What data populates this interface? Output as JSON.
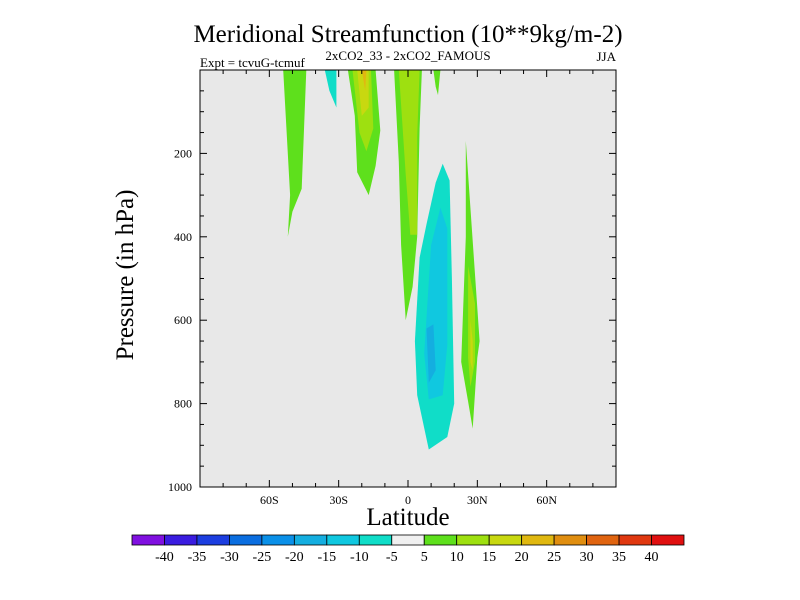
{
  "chart_data": {
    "type": "contour",
    "title": "Meridional Streamfunction (10**9kg/m-2)",
    "subtitle": "2xCO2_33 - 2xCO2_FAMOUS",
    "left_label": "Expt = tcvuG-tcmuf",
    "right_label": "JJA",
    "xlabel": "Latitude",
    "ylabel": "Pressure (in hPa)",
    "x_range": [
      -90,
      90
    ],
    "y_range": [
      0,
      1000
    ],
    "y_reversed": true,
    "x_ticks": [
      {
        "value": -60,
        "label": "60S"
      },
      {
        "value": -30,
        "label": "30S"
      },
      {
        "value": 0,
        "label": "0"
      },
      {
        "value": 30,
        "label": "30N"
      },
      {
        "value": 60,
        "label": "60N"
      }
    ],
    "y_ticks": [
      {
        "value": 200,
        "label": "200"
      },
      {
        "value": 400,
        "label": "400"
      },
      {
        "value": 600,
        "label": "600"
      },
      {
        "value": 800,
        "label": "800"
      },
      {
        "value": 1000,
        "label": "1000"
      }
    ],
    "background_color": "#e8e8e8",
    "colorbar": {
      "labels": [
        "-40",
        "-35",
        "-30",
        "-25",
        "-20",
        "-15",
        "-10",
        "-5",
        "5",
        "10",
        "15",
        "20",
        "25",
        "30",
        "35",
        "40"
      ],
      "colors": [
        "#8010e0",
        "#3a1ce0",
        "#1c3ee0",
        "#0a6ee0",
        "#0a90e8",
        "#14aee0",
        "#10c8e0",
        "#10ddc8",
        "#f0f0f0",
        "#5ee01c",
        "#9ee010",
        "#c8d810",
        "#e0b810",
        "#e08e10",
        "#e06410",
        "#e03810",
        "#e01010"
      ]
    },
    "regions": [
      {
        "color": "#5ee01c",
        "points": [
          [
            -54,
            0
          ],
          [
            -44,
            0
          ],
          [
            -46,
            285
          ],
          [
            -50,
            340
          ],
          [
            -52,
            400
          ],
          [
            -51,
            300
          ]
        ]
      },
      {
        "color": "#10ddc8",
        "points": [
          [
            -36,
            0
          ],
          [
            -31,
            0
          ],
          [
            -31,
            90
          ],
          [
            -34,
            50
          ]
        ]
      },
      {
        "color": "#5ee01c",
        "points": [
          [
            -26,
            0
          ],
          [
            -14,
            0
          ],
          [
            -12,
            145
          ],
          [
            -14,
            230
          ],
          [
            -17,
            300
          ],
          [
            -22,
            245
          ],
          [
            -23,
            110
          ]
        ]
      },
      {
        "color": "#9ee010",
        "points": [
          [
            -24,
            0
          ],
          [
            -16,
            0
          ],
          [
            -15,
            140
          ],
          [
            -18,
            195
          ],
          [
            -21,
            150
          ]
        ]
      },
      {
        "color": "#c8d810",
        "points": [
          [
            -22,
            0
          ],
          [
            -17,
            0
          ],
          [
            -17,
            90
          ],
          [
            -20,
            110
          ]
        ]
      },
      {
        "color": "#e0b810",
        "points": [
          [
            -20,
            0
          ],
          [
            -18,
            0
          ],
          [
            -18.5,
            50
          ]
        ]
      },
      {
        "color": "#5ee01c",
        "points": [
          [
            -6,
            0
          ],
          [
            6,
            0
          ],
          [
            5,
            140
          ],
          [
            4,
            400
          ],
          [
            2,
            520
          ],
          [
            -1,
            600
          ],
          [
            -3,
            420
          ],
          [
            -4,
            220
          ]
        ]
      },
      {
        "color": "#9ee010",
        "points": [
          [
            -4,
            0
          ],
          [
            5,
            0
          ],
          [
            4,
            160
          ],
          [
            4,
            395
          ],
          [
            1,
            395
          ],
          [
            -1,
            250
          ]
        ]
      },
      {
        "color": "#5ee01c",
        "points": [
          [
            11,
            0
          ],
          [
            14,
            0
          ],
          [
            13,
            60
          ],
          [
            12,
            40
          ]
        ]
      },
      {
        "color": "#5ee01c",
        "points": [
          [
            25,
            170
          ],
          [
            27,
            330
          ],
          [
            31,
            650
          ],
          [
            30,
            690
          ],
          [
            28,
            860
          ],
          [
            26,
            795
          ],
          [
            23,
            700
          ],
          [
            25,
            400
          ]
        ]
      },
      {
        "color": "#9ee010",
        "points": [
          [
            26,
            470
          ],
          [
            29,
            560
          ],
          [
            29,
            700
          ],
          [
            27,
            760
          ],
          [
            26,
            690
          ]
        ]
      },
      {
        "color": "#c8d810",
        "points": [
          [
            27,
            600
          ],
          [
            28,
            650
          ],
          [
            28,
            720
          ],
          [
            27,
            700
          ]
        ]
      },
      {
        "color": "#10ddc8",
        "points": [
          [
            12,
            270
          ],
          [
            15,
            225
          ],
          [
            18,
            265
          ],
          [
            19,
            500
          ],
          [
            20,
            800
          ],
          [
            17,
            880
          ],
          [
            9,
            910
          ],
          [
            4,
            780
          ],
          [
            3,
            650
          ],
          [
            5,
            450
          ],
          [
            8,
            370
          ]
        ]
      },
      {
        "color": "#10c8e0",
        "points": [
          [
            10,
            420
          ],
          [
            14,
            330
          ],
          [
            17,
            380
          ],
          [
            17,
            660
          ],
          [
            15,
            780
          ],
          [
            9,
            790
          ],
          [
            7,
            680
          ]
        ]
      },
      {
        "color": "#14aee0",
        "points": [
          [
            8,
            620
          ],
          [
            11,
            610
          ],
          [
            12,
            720
          ],
          [
            9,
            750
          ]
        ]
      }
    ]
  }
}
